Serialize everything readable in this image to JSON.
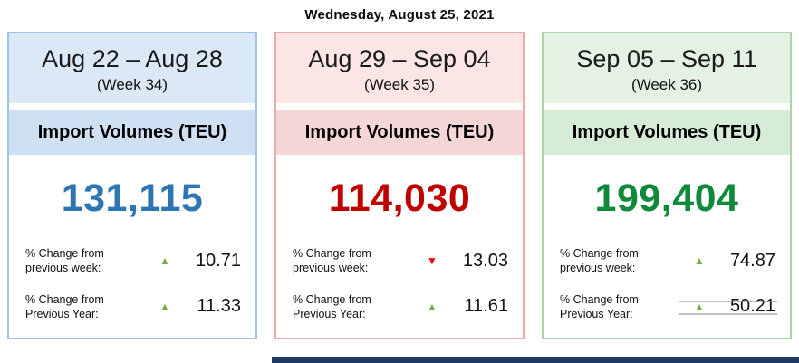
{
  "title": "Wednesday, August 25, 2021",
  "cards": [
    {
      "date_range": "Aug 22 – Aug 28",
      "week_label": "(Week 34)",
      "metric_label": "Import Volumes (TEU)",
      "volume": "131,115",
      "changes": [
        {
          "label_line1": "% Change from",
          "label_line2": "previous week:",
          "direction": "up",
          "arrow": "▲",
          "value": "10.71"
        },
        {
          "label_line1": "% Change from",
          "label_line2": "Previous Year:",
          "direction": "up",
          "arrow": "▲",
          "value": "11.33"
        }
      ],
      "colors": {
        "border": "#9dc3e6",
        "header_bg": "#dbe8f6",
        "band_bg": "#cfe0f3",
        "volume_color": "#2e75b6"
      }
    },
    {
      "date_range": "Aug 29 – Sep 04",
      "week_label": "(Week 35)",
      "metric_label": "Import Volumes (TEU)",
      "volume": "114,030",
      "changes": [
        {
          "label_line1": "% Change from",
          "label_line2": "previous week:",
          "direction": "down",
          "arrow": "▼",
          "value": "13.03"
        },
        {
          "label_line1": "% Change from",
          "label_line2": "Previous Year:",
          "direction": "up",
          "arrow": "▲",
          "value": "11.61"
        }
      ],
      "colors": {
        "border": "#f0a9a9",
        "header_bg": "#fbe5e5",
        "band_bg": "#f5d6d6",
        "volume_color": "#c00000"
      }
    },
    {
      "date_range": "Sep 05 – Sep 11",
      "week_label": "(Week 36)",
      "metric_label": "Import Volumes (TEU)",
      "volume": "199,404",
      "changes": [
        {
          "label_line1": "% Change from",
          "label_line2": "previous week:",
          "direction": "up",
          "arrow": "▲",
          "value": "74.87"
        },
        {
          "label_line1": "% Change from",
          "label_line2": "Previous Year:",
          "direction": "up",
          "arrow": "▲",
          "value": "50.21"
        }
      ],
      "colors": {
        "border": "#a9d6a9",
        "header_bg": "#e4f2e4",
        "band_bg": "#d7ecd7",
        "volume_color": "#0f8a3a"
      }
    }
  ]
}
